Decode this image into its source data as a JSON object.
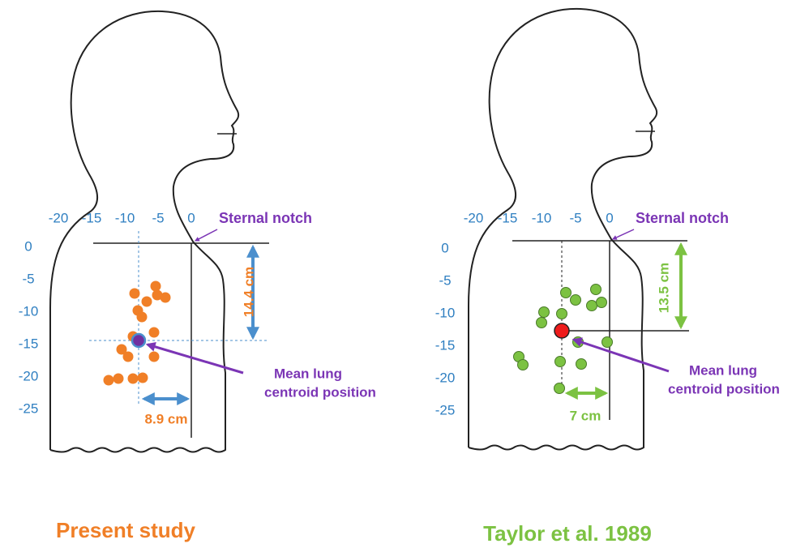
{
  "panels": [
    {
      "caption": "Present study",
      "x_ticks": [
        -20,
        -15,
        -10,
        -5,
        0
      ],
      "y_ticks": [
        0,
        -5,
        -10,
        -15,
        -20,
        -25
      ],
      "landmark": "Sternal notch",
      "vertical_distance": "14.4 cm",
      "horizontal_distance": "8.9 cm",
      "centroid_label": [
        "Mean lung",
        "centroid position"
      ]
    },
    {
      "caption": "Taylor et al. 1989",
      "x_ticks": [
        -20,
        -15,
        -10,
        -5,
        0
      ],
      "y_ticks": [
        0,
        -5,
        -10,
        -15,
        -20,
        -25
      ],
      "landmark": "Sternal notch",
      "vertical_distance": "13.5 cm",
      "horizontal_distance": "7 cm",
      "centroid_label": [
        "Mean lung",
        "centroid position"
      ]
    }
  ]
}
